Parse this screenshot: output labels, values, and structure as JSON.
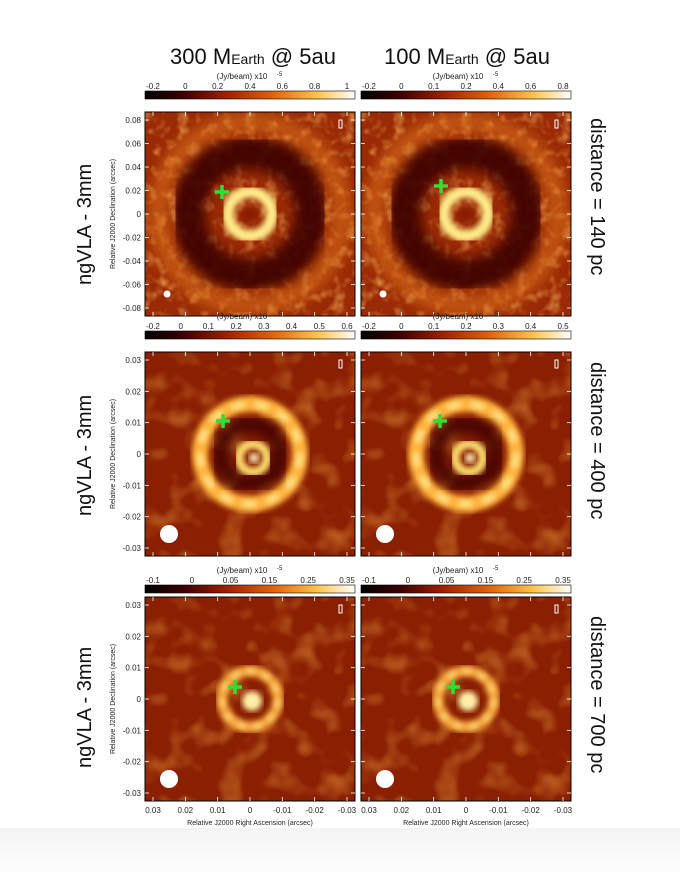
{
  "columns": [
    {
      "prefix": "300 M",
      "sub": "Earth",
      "suffix": " @ 5au"
    },
    {
      "prefix": "100 M",
      "sub": "Earth",
      "suffix": " @ 5au"
    }
  ],
  "row_label": "ngVLA - 3mm",
  "rows": [
    {
      "distance": "distance = 140 pc",
      "ytick_labels": [
        "0.08",
        "0.06",
        "0.04",
        "0.02",
        "0",
        "-0.02",
        "-0.04",
        "-0.06",
        "-0.08"
      ],
      "colorbars": [
        {
          "unit": "(Jy/beam)  x10",
          "exp": "-5",
          "ticks": [
            "-0.2",
            "0",
            "0.2",
            "0.4",
            "0.6",
            "0.8",
            "1"
          ]
        },
        {
          "unit": "(Jy/beam)  x10",
          "exp": "-5",
          "ticks": [
            "-0.2",
            "0",
            "0.1",
            "0.2",
            "0.4",
            "0.6",
            "0.8"
          ]
        }
      ]
    },
    {
      "distance": "distance = 400 pc",
      "ytick_labels": [
        "0.03",
        "0.02",
        "0.01",
        "0",
        "-0.01",
        "-0.02",
        "-0.03"
      ],
      "colorbars": [
        {
          "unit": "(Jy/beam)  x10",
          "exp": "-5",
          "ticks": [
            "-0.2",
            "0",
            "0.1",
            "0.2",
            "0.3",
            "0.4",
            "0.5",
            "0.6"
          ]
        },
        {
          "unit": "(Jy/beam)  x10",
          "exp": "-5",
          "ticks": [
            "-0.2",
            "0",
            "0.1",
            "0.2",
            "0.3",
            "0.4",
            "0.5"
          ]
        }
      ]
    },
    {
      "distance": "distance = 700 pc",
      "ytick_labels": [
        "0.03",
        "0.02",
        "0.01",
        "0",
        "-0.01",
        "-0.02",
        "-0.03"
      ],
      "colorbars": [
        {
          "unit": "(Jy/beam)  x10",
          "exp": "-5",
          "ticks": [
            "-0.1",
            "0",
            "0.05",
            "0.15",
            "0.25",
            "0.35"
          ]
        },
        {
          "unit": "(Jy/beam)  x10",
          "exp": "-5",
          "ticks": [
            "-0.1",
            "0",
            "0.05",
            "0.15",
            "0.25",
            "0.35"
          ]
        }
      ]
    }
  ],
  "axis": {
    "ylabel": "Relative J2000 Declination (arcsec)",
    "xlabel": "Relative J2000 Right Ascension (arcsec)",
    "xtick_labels": [
      "0.03",
      "0.02",
      "0.01",
      "0",
      "-0.01",
      "-0.02",
      "-0.03"
    ]
  },
  "colors": {
    "marker": "#33dd33",
    "beam": "#ffffff"
  }
}
